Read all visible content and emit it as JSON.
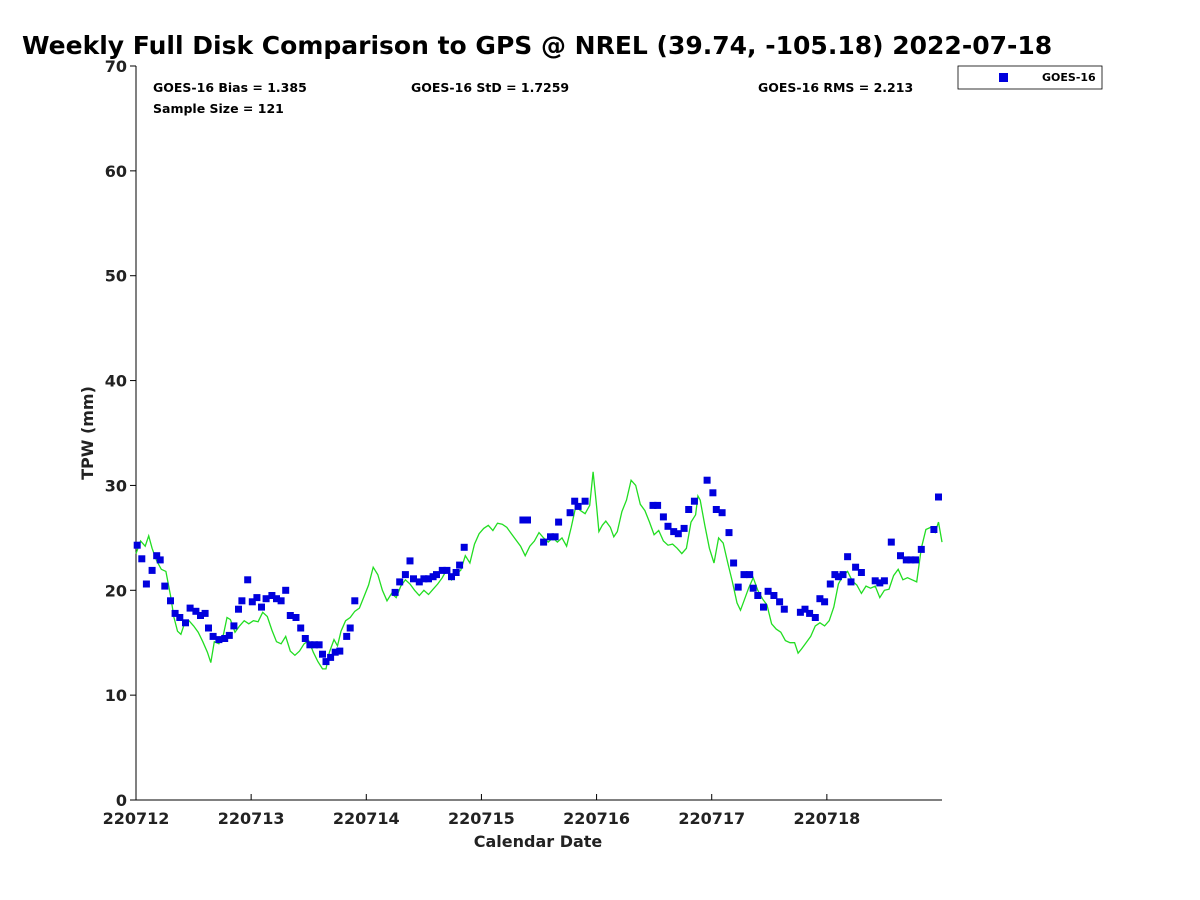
{
  "chart_data": {
    "type": "scatter",
    "title": "Weekly Full Disk Comparison to GPS @ NREL (39.74, -105.18) 2022-07-18",
    "xlabel": "Calendar Date",
    "ylabel": "TPW (mm)",
    "xlim": [
      0,
      7
    ],
    "ylim": [
      0,
      70
    ],
    "yticks": [
      0,
      10,
      20,
      30,
      40,
      50,
      60,
      70
    ],
    "xticks": [
      {
        "value": 0,
        "label": "220712"
      },
      {
        "value": 1,
        "label": "220713"
      },
      {
        "value": 2,
        "label": "220714"
      },
      {
        "value": 3,
        "label": "220715"
      },
      {
        "value": 4,
        "label": "220716"
      },
      {
        "value": 5,
        "label": "220717"
      },
      {
        "value": 6,
        "label": "220718"
      }
    ],
    "stats": {
      "bias": "GOES-16 Bias = 1.385",
      "std": "GOES-16 StD = 1.7259",
      "rms": "GOES-16 RMS = 2.213",
      "sample": "Sample Size = 121"
    },
    "legend": {
      "position": "top-right-outside",
      "label": "GOES-16",
      "color": "#0000dd"
    },
    "colors": {
      "goes": "#0000dd",
      "gps": "#22dd22"
    },
    "series": [
      {
        "name": "GOES-16",
        "kind": "markers",
        "points": [
          [
            0.01,
            24.3
          ],
          [
            0.05,
            23.0
          ],
          [
            0.09,
            20.6
          ],
          [
            0.14,
            21.9
          ],
          [
            0.18,
            23.3
          ],
          [
            0.21,
            22.9
          ],
          [
            0.25,
            20.4
          ],
          [
            0.3,
            19.0
          ],
          [
            0.34,
            17.8
          ],
          [
            0.38,
            17.4
          ],
          [
            0.43,
            16.9
          ],
          [
            0.47,
            18.3
          ],
          [
            0.52,
            18.0
          ],
          [
            0.56,
            17.6
          ],
          [
            0.6,
            17.8
          ],
          [
            0.63,
            16.4
          ],
          [
            0.67,
            15.6
          ],
          [
            0.72,
            15.3
          ],
          [
            0.77,
            15.4
          ],
          [
            0.81,
            15.7
          ],
          [
            0.85,
            16.6
          ],
          [
            0.89,
            18.2
          ],
          [
            0.92,
            19.0
          ],
          [
            0.97,
            21.0
          ],
          [
            1.01,
            18.9
          ],
          [
            1.05,
            19.3
          ],
          [
            1.09,
            18.4
          ],
          [
            1.13,
            19.2
          ],
          [
            1.18,
            19.5
          ],
          [
            1.22,
            19.2
          ],
          [
            1.26,
            19.0
          ],
          [
            1.3,
            20.0
          ],
          [
            1.34,
            17.6
          ],
          [
            1.39,
            17.4
          ],
          [
            1.43,
            16.4
          ],
          [
            1.47,
            15.4
          ],
          [
            1.51,
            14.8
          ],
          [
            1.55,
            14.8
          ],
          [
            1.59,
            14.8
          ],
          [
            1.62,
            13.9
          ],
          [
            1.65,
            13.2
          ],
          [
            1.69,
            13.6
          ],
          [
            1.73,
            14.1
          ],
          [
            1.77,
            14.2
          ],
          [
            1.83,
            15.6
          ],
          [
            1.86,
            16.4
          ],
          [
            1.9,
            19.0
          ],
          [
            2.25,
            19.8
          ],
          [
            2.29,
            20.8
          ],
          [
            2.34,
            21.5
          ],
          [
            2.38,
            22.8
          ],
          [
            2.41,
            21.1
          ],
          [
            2.46,
            20.8
          ],
          [
            2.5,
            21.1
          ],
          [
            2.54,
            21.1
          ],
          [
            2.58,
            21.3
          ],
          [
            2.61,
            21.5
          ],
          [
            2.66,
            21.9
          ],
          [
            2.7,
            21.9
          ],
          [
            2.74,
            21.3
          ],
          [
            2.78,
            21.7
          ],
          [
            2.81,
            22.4
          ],
          [
            2.85,
            24.1
          ],
          [
            3.36,
            26.7
          ],
          [
            3.4,
            26.7
          ],
          [
            3.54,
            24.6
          ],
          [
            3.6,
            25.1
          ],
          [
            3.64,
            25.1
          ],
          [
            3.67,
            26.5
          ],
          [
            3.77,
            27.4
          ],
          [
            3.81,
            28.5
          ],
          [
            3.84,
            28.0
          ],
          [
            3.9,
            28.5
          ],
          [
            4.49,
            28.1
          ],
          [
            4.53,
            28.1
          ],
          [
            4.58,
            27.0
          ],
          [
            4.62,
            26.1
          ],
          [
            4.67,
            25.6
          ],
          [
            4.71,
            25.4
          ],
          [
            4.76,
            25.9
          ],
          [
            4.8,
            27.7
          ],
          [
            4.85,
            28.5
          ],
          [
            4.96,
            30.5
          ],
          [
            5.01,
            29.3
          ],
          [
            5.04,
            27.7
          ],
          [
            5.09,
            27.4
          ],
          [
            5.15,
            25.5
          ],
          [
            5.19,
            22.6
          ],
          [
            5.23,
            20.3
          ],
          [
            5.28,
            21.5
          ],
          [
            5.33,
            21.5
          ],
          [
            5.36,
            20.2
          ],
          [
            5.4,
            19.5
          ],
          [
            5.45,
            18.4
          ],
          [
            5.49,
            19.9
          ],
          [
            5.54,
            19.5
          ],
          [
            5.59,
            18.9
          ],
          [
            5.63,
            18.2
          ],
          [
            5.77,
            17.9
          ],
          [
            5.81,
            18.2
          ],
          [
            5.85,
            17.8
          ],
          [
            5.9,
            17.4
          ],
          [
            5.94,
            19.2
          ],
          [
            5.98,
            18.9
          ],
          [
            6.03,
            20.6
          ],
          [
            6.07,
            21.5
          ],
          [
            6.1,
            21.3
          ],
          [
            6.14,
            21.5
          ],
          [
            6.18,
            23.2
          ],
          [
            6.21,
            20.8
          ],
          [
            6.25,
            22.2
          ],
          [
            6.3,
            21.7
          ],
          [
            6.42,
            20.9
          ],
          [
            6.46,
            20.7
          ],
          [
            6.5,
            20.9
          ],
          [
            6.56,
            24.6
          ],
          [
            6.64,
            23.3
          ],
          [
            6.69,
            22.9
          ],
          [
            6.73,
            22.9
          ],
          [
            6.77,
            22.9
          ],
          [
            6.82,
            23.9
          ],
          [
            6.93,
            25.8
          ],
          [
            6.97,
            28.9
          ]
        ]
      },
      {
        "name": "GPS",
        "kind": "line",
        "points": [
          [
            0.0,
            23.5
          ],
          [
            0.04,
            24.7
          ],
          [
            0.08,
            24.2
          ],
          [
            0.11,
            25.2
          ],
          [
            0.14,
            24.0
          ],
          [
            0.18,
            22.8
          ],
          [
            0.22,
            22.0
          ],
          [
            0.26,
            21.8
          ],
          [
            0.3,
            19.5
          ],
          [
            0.33,
            17.4
          ],
          [
            0.36,
            16.1
          ],
          [
            0.39,
            15.8
          ],
          [
            0.42,
            16.8
          ],
          [
            0.46,
            17.1
          ],
          [
            0.5,
            16.6
          ],
          [
            0.54,
            16.0
          ],
          [
            0.58,
            15.1
          ],
          [
            0.62,
            14.1
          ],
          [
            0.65,
            13.1
          ],
          [
            0.68,
            15.1
          ],
          [
            0.72,
            14.9
          ],
          [
            0.76,
            15.8
          ],
          [
            0.79,
            17.4
          ],
          [
            0.82,
            17.2
          ],
          [
            0.86,
            16.0
          ],
          [
            0.9,
            16.6
          ],
          [
            0.94,
            17.1
          ],
          [
            0.98,
            16.8
          ],
          [
            1.02,
            17.1
          ],
          [
            1.06,
            17.0
          ],
          [
            1.1,
            17.9
          ],
          [
            1.14,
            17.5
          ],
          [
            1.18,
            16.2
          ],
          [
            1.22,
            15.1
          ],
          [
            1.26,
            14.9
          ],
          [
            1.3,
            15.6
          ],
          [
            1.34,
            14.2
          ],
          [
            1.38,
            13.8
          ],
          [
            1.42,
            14.2
          ],
          [
            1.46,
            14.9
          ],
          [
            1.5,
            15.2
          ],
          [
            1.54,
            14.1
          ],
          [
            1.58,
            13.2
          ],
          [
            1.62,
            12.5
          ],
          [
            1.65,
            12.5
          ],
          [
            1.68,
            14.1
          ],
          [
            1.72,
            15.3
          ],
          [
            1.75,
            14.7
          ],
          [
            1.78,
            16.1
          ],
          [
            1.82,
            17.1
          ],
          [
            1.86,
            17.4
          ],
          [
            1.9,
            18.0
          ],
          [
            1.94,
            18.3
          ],
          [
            1.98,
            19.4
          ],
          [
            2.02,
            20.5
          ],
          [
            2.06,
            22.2
          ],
          [
            2.1,
            21.5
          ],
          [
            2.14,
            20.0
          ],
          [
            2.18,
            19.0
          ],
          [
            2.22,
            19.7
          ],
          [
            2.26,
            19.3
          ],
          [
            2.3,
            20.4
          ],
          [
            2.34,
            21.0
          ],
          [
            2.38,
            20.6
          ],
          [
            2.42,
            20.0
          ],
          [
            2.46,
            19.5
          ],
          [
            2.5,
            20.0
          ],
          [
            2.54,
            19.6
          ],
          [
            2.58,
            20.1
          ],
          [
            2.62,
            20.6
          ],
          [
            2.66,
            21.2
          ],
          [
            2.7,
            22.0
          ],
          [
            2.74,
            21.0
          ],
          [
            2.78,
            21.6
          ],
          [
            2.82,
            21.9
          ],
          [
            2.86,
            23.3
          ],
          [
            2.9,
            22.6
          ],
          [
            2.94,
            24.4
          ],
          [
            2.98,
            25.4
          ],
          [
            3.02,
            25.9
          ],
          [
            3.06,
            26.2
          ],
          [
            3.1,
            25.7
          ],
          [
            3.14,
            26.4
          ],
          [
            3.18,
            26.3
          ],
          [
            3.22,
            26.0
          ],
          [
            3.26,
            25.4
          ],
          [
            3.3,
            24.8
          ],
          [
            3.34,
            24.2
          ],
          [
            3.38,
            23.3
          ],
          [
            3.42,
            24.2
          ],
          [
            3.46,
            24.7
          ],
          [
            3.5,
            25.5
          ],
          [
            3.54,
            25.0
          ],
          [
            3.58,
            24.6
          ],
          [
            3.62,
            25.0
          ],
          [
            3.66,
            24.6
          ],
          [
            3.7,
            25.0
          ],
          [
            3.74,
            24.2
          ],
          [
            3.78,
            26.0
          ],
          [
            3.82,
            28.0
          ],
          [
            3.86,
            27.6
          ],
          [
            3.9,
            27.3
          ],
          [
            3.94,
            28.1
          ],
          [
            3.97,
            31.3
          ],
          [
            4.0,
            28.0
          ],
          [
            4.02,
            25.6
          ],
          [
            4.05,
            26.2
          ],
          [
            4.08,
            26.6
          ],
          [
            4.12,
            26.0
          ],
          [
            4.15,
            25.1
          ],
          [
            4.18,
            25.6
          ],
          [
            4.22,
            27.5
          ],
          [
            4.26,
            28.6
          ],
          [
            4.3,
            30.5
          ],
          [
            4.34,
            30.0
          ],
          [
            4.38,
            28.2
          ],
          [
            4.42,
            27.6
          ],
          [
            4.46,
            26.5
          ],
          [
            4.5,
            25.3
          ],
          [
            4.54,
            25.7
          ],
          [
            4.58,
            24.7
          ],
          [
            4.62,
            24.3
          ],
          [
            4.66,
            24.4
          ],
          [
            4.7,
            24.0
          ],
          [
            4.74,
            23.5
          ],
          [
            4.78,
            24.0
          ],
          [
            4.82,
            26.5
          ],
          [
            4.86,
            27.2
          ],
          [
            4.88,
            29.0
          ],
          [
            4.9,
            28.6
          ],
          [
            4.94,
            26.2
          ],
          [
            4.98,
            24.0
          ],
          [
            5.02,
            22.6
          ],
          [
            5.06,
            25.0
          ],
          [
            5.1,
            24.5
          ],
          [
            5.14,
            22.6
          ],
          [
            5.18,
            20.8
          ],
          [
            5.22,
            18.8
          ],
          [
            5.25,
            18.1
          ],
          [
            5.28,
            19.0
          ],
          [
            5.32,
            20.2
          ],
          [
            5.36,
            21.2
          ],
          [
            5.4,
            20.0
          ],
          [
            5.44,
            19.2
          ],
          [
            5.48,
            18.6
          ],
          [
            5.52,
            16.8
          ],
          [
            5.56,
            16.3
          ],
          [
            5.6,
            16.0
          ],
          [
            5.64,
            15.2
          ],
          [
            5.68,
            15.0
          ],
          [
            5.72,
            15.0
          ],
          [
            5.75,
            14.0
          ],
          [
            5.78,
            14.4
          ],
          [
            5.82,
            15.0
          ],
          [
            5.86,
            15.6
          ],
          [
            5.9,
            16.6
          ],
          [
            5.94,
            16.9
          ],
          [
            5.98,
            16.6
          ],
          [
            6.02,
            17.1
          ],
          [
            6.06,
            18.4
          ],
          [
            6.1,
            20.6
          ],
          [
            6.14,
            21.4
          ],
          [
            6.18,
            21.8
          ],
          [
            6.22,
            20.9
          ],
          [
            6.26,
            20.5
          ],
          [
            6.3,
            19.7
          ],
          [
            6.34,
            20.4
          ],
          [
            6.38,
            20.2
          ],
          [
            6.42,
            20.4
          ],
          [
            6.46,
            19.3
          ],
          [
            6.5,
            20.0
          ],
          [
            6.54,
            20.1
          ],
          [
            6.58,
            21.4
          ],
          [
            6.62,
            22.0
          ],
          [
            6.66,
            21.0
          ],
          [
            6.7,
            21.2
          ],
          [
            6.74,
            21.0
          ],
          [
            6.78,
            20.8
          ],
          [
            6.82,
            24.0
          ],
          [
            6.86,
            25.8
          ],
          [
            6.9,
            26.0
          ],
          [
            6.94,
            25.5
          ],
          [
            6.97,
            26.5
          ],
          [
            7.0,
            24.6
          ]
        ]
      }
    ]
  }
}
